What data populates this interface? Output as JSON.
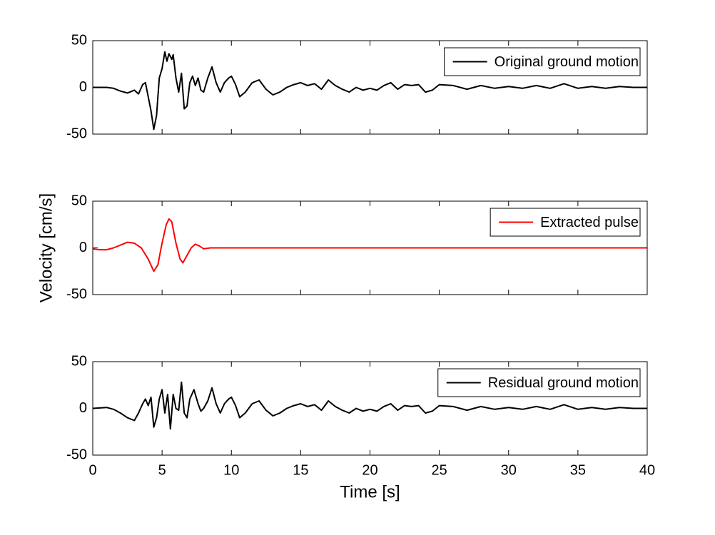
{
  "chart_data": [
    {
      "type": "line",
      "legend": "upper right",
      "xlim": [
        0,
        40
      ],
      "ylim": [
        -50,
        50
      ],
      "yticks": [
        -50,
        0,
        50
      ],
      "x": [
        0,
        1,
        1.5,
        2,
        2.5,
        3,
        3.3,
        3.6,
        3.8,
        4,
        4.2,
        4.4,
        4.6,
        4.8,
        5,
        5.2,
        5.35,
        5.5,
        5.7,
        5.8,
        6,
        6.2,
        6.4,
        6.6,
        6.8,
        7,
        7.2,
        7.4,
        7.6,
        7.8,
        8,
        8.3,
        8.6,
        8.9,
        9.2,
        9.5,
        9.8,
        10,
        10.3,
        10.6,
        11,
        11.5,
        12,
        12.5,
        13,
        13.5,
        14,
        14.5,
        15,
        15.5,
        16,
        16.5,
        17,
        17.5,
        18,
        18.5,
        19,
        19.5,
        20,
        20.5,
        21,
        21.5,
        22,
        22.5,
        23,
        23.5,
        24,
        24.5,
        25,
        26,
        27,
        28,
        29,
        30,
        31,
        32,
        33,
        34,
        35,
        36,
        37,
        38,
        39,
        40
      ],
      "series": [
        {
          "name": "Original ground motion",
          "color": "#000000",
          "values": [
            0,
            0,
            -1,
            -4,
            -6,
            -3,
            -7,
            3,
            5,
            -10,
            -25,
            -45,
            -30,
            10,
            20,
            38,
            28,
            36,
            30,
            35,
            10,
            -5,
            15,
            -23,
            -20,
            5,
            12,
            2,
            10,
            -3,
            -5,
            10,
            22,
            5,
            -5,
            5,
            10,
            12,
            3,
            -10,
            -5,
            5,
            8,
            -2,
            -8,
            -5,
            0,
            3,
            5,
            2,
            4,
            -2,
            8,
            2,
            -2,
            -5,
            0,
            -3,
            -1,
            -3,
            2,
            5,
            -2,
            3,
            2,
            3,
            -5,
            -3,
            3,
            2,
            -2,
            2,
            -1,
            1,
            -1,
            2,
            -1,
            4,
            -1,
            1,
            -1,
            1,
            0,
            0
          ]
        }
      ]
    },
    {
      "type": "line",
      "legend": "upper right",
      "xlim": [
        0,
        40
      ],
      "ylim": [
        -50,
        50
      ],
      "yticks": [
        -50,
        0,
        50
      ],
      "ylabel": "Velocity [cm/s]",
      "x": [
        0,
        0.5,
        1,
        1.5,
        2,
        2.5,
        3,
        3.5,
        4,
        4.4,
        4.7,
        5,
        5.3,
        5.5,
        5.7,
        6,
        6.3,
        6.5,
        6.8,
        7.1,
        7.4,
        7.7,
        8,
        8.5,
        9,
        12,
        20,
        30,
        40
      ],
      "series": [
        {
          "name": "Extracted pulse",
          "color": "#ff0000",
          "values": [
            -1,
            -2,
            -2,
            0,
            3,
            6,
            5,
            0,
            -12,
            -25,
            -18,
            5,
            25,
            31,
            28,
            5,
            -12,
            -16,
            -8,
            0,
            4,
            2,
            -1,
            0,
            0,
            0,
            0,
            0,
            0
          ]
        }
      ]
    },
    {
      "type": "line",
      "legend": "upper right",
      "xlim": [
        0,
        40
      ],
      "ylim": [
        -50,
        50
      ],
      "yticks": [
        -50,
        0,
        50
      ],
      "xticks": [
        0,
        5,
        10,
        15,
        20,
        25,
        30,
        35,
        40
      ],
      "xlabel": "Time [s]",
      "x": [
        0,
        1,
        1.5,
        2,
        2.5,
        3,
        3.3,
        3.6,
        3.8,
        4,
        4.2,
        4.4,
        4.6,
        4.8,
        5,
        5.2,
        5.4,
        5.6,
        5.8,
        6,
        6.2,
        6.4,
        6.6,
        6.8,
        7,
        7.3,
        7.6,
        7.8,
        8,
        8.3,
        8.6,
        8.9,
        9.2,
        9.5,
        9.8,
        10,
        10.3,
        10.6,
        11,
        11.5,
        12,
        12.5,
        13,
        13.5,
        14,
        14.5,
        15,
        15.5,
        16,
        16.5,
        17,
        17.5,
        18,
        18.5,
        19,
        19.5,
        20,
        20.5,
        21,
        21.5,
        22,
        22.5,
        23,
        23.5,
        24,
        24.5,
        25,
        26,
        27,
        28,
        29,
        30,
        31,
        32,
        33,
        34,
        35,
        36,
        37,
        38,
        39,
        40
      ],
      "series": [
        {
          "name": "Residual ground motion",
          "color": "#000000",
          "values": [
            0,
            1,
            -1,
            -5,
            -10,
            -13,
            -5,
            5,
            10,
            3,
            12,
            -20,
            -10,
            10,
            20,
            -5,
            15,
            -22,
            15,
            0,
            -2,
            28,
            -5,
            -10,
            10,
            20,
            5,
            -3,
            0,
            8,
            22,
            5,
            -5,
            5,
            10,
            12,
            3,
            -10,
            -5,
            5,
            8,
            -2,
            -8,
            -5,
            0,
            3,
            5,
            2,
            4,
            -2,
            8,
            2,
            -2,
            -5,
            0,
            -3,
            -1,
            -3,
            2,
            5,
            -2,
            3,
            2,
            3,
            -5,
            -3,
            3,
            2,
            -2,
            2,
            -1,
            1,
            -1,
            2,
            -1,
            4,
            -1,
            1,
            -1,
            1,
            0,
            0
          ]
        }
      ]
    }
  ]
}
